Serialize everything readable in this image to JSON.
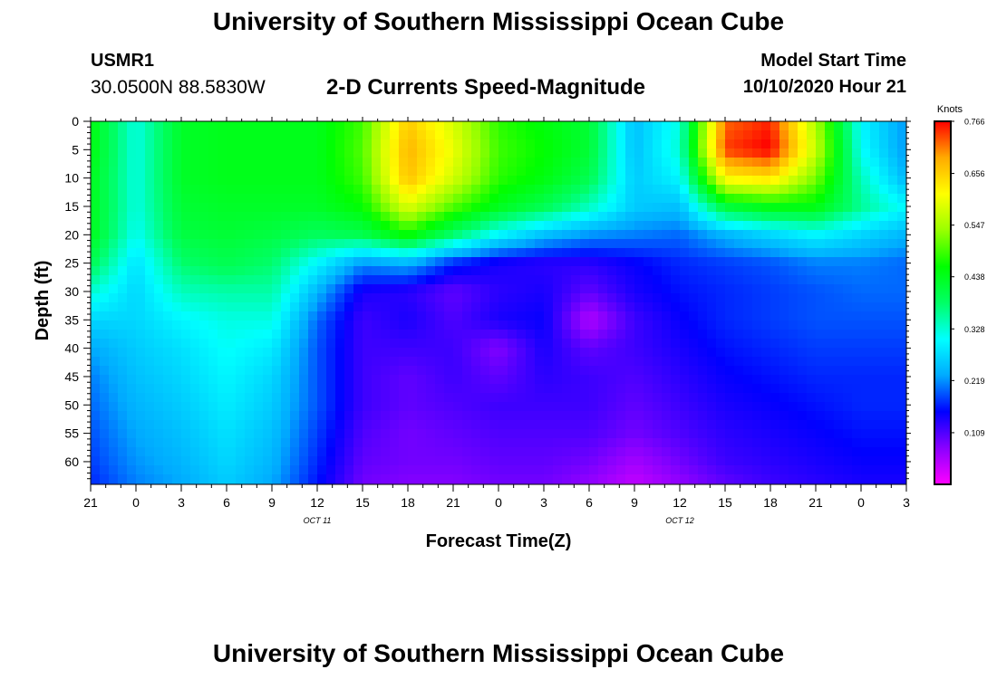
{
  "header": {
    "title": "University of Southern Mississippi Ocean Cube",
    "station_id": "USMR1",
    "station_location": "30.0500N 88.5830W",
    "subtitle": "2-D Currents Speed-Magnitude",
    "model_start_label": "Model Start Time",
    "model_start_value": "10/10/2020 Hour 21"
  },
  "footer": {
    "title": "University of Southern Mississippi Ocean Cube"
  },
  "chart_data": {
    "type": "heatmap",
    "xlabel": "Forecast Time(Z)",
    "ylabel": "Depth (ft)",
    "x_tick_labels": [
      "21",
      "0",
      "3",
      "6",
      "9",
      "12",
      "15",
      "18",
      "21",
      "0",
      "3",
      "6",
      "9",
      "12",
      "15",
      "18",
      "21",
      "0",
      "3"
    ],
    "date_labels": [
      {
        "label": "OCT 11",
        "at_tick": 5
      },
      {
        "label": "OCT 12",
        "at_tick": 13
      }
    ],
    "y_ticks": [
      0,
      5,
      10,
      15,
      20,
      25,
      30,
      35,
      40,
      45,
      50,
      55,
      60
    ],
    "ylim": [
      0,
      64
    ],
    "y_inverted": true,
    "x_hours_from_start": [
      0,
      3,
      6,
      9,
      12,
      15,
      18,
      21,
      24,
      27,
      30,
      33,
      36,
      39,
      42,
      45,
      48,
      51,
      54
    ],
    "colorbar": {
      "label": "Knots",
      "ticks": [
        0.766,
        0.656,
        0.547,
        0.438,
        0.328,
        0.219,
        0.109
      ],
      "range": [
        0,
        0.766
      ],
      "colors": [
        "#ff00ff",
        "#8a00ff",
        "#0000ff",
        "#00aaff",
        "#00ffff",
        "#00ff66",
        "#00ff00",
        "#99ff00",
        "#ffff00",
        "#ffaa00",
        "#ff0000"
      ]
    },
    "depth_rows_ft": [
      0,
      5,
      10,
      15,
      20,
      25,
      30,
      35,
      40,
      45,
      50,
      55,
      60,
      64
    ],
    "values": [
      [
        0.45,
        0.32,
        0.43,
        0.44,
        0.44,
        0.44,
        0.49,
        0.66,
        0.58,
        0.48,
        0.45,
        0.42,
        0.25,
        0.32,
        0.72,
        0.75,
        0.55,
        0.3,
        0.22
      ],
      [
        0.45,
        0.32,
        0.43,
        0.44,
        0.44,
        0.44,
        0.5,
        0.68,
        0.6,
        0.49,
        0.46,
        0.42,
        0.25,
        0.33,
        0.74,
        0.77,
        0.57,
        0.31,
        0.22
      ],
      [
        0.44,
        0.32,
        0.43,
        0.44,
        0.44,
        0.44,
        0.49,
        0.67,
        0.58,
        0.48,
        0.45,
        0.4,
        0.26,
        0.3,
        0.62,
        0.64,
        0.52,
        0.34,
        0.24
      ],
      [
        0.44,
        0.32,
        0.42,
        0.43,
        0.43,
        0.43,
        0.46,
        0.59,
        0.5,
        0.44,
        0.4,
        0.34,
        0.26,
        0.25,
        0.42,
        0.45,
        0.45,
        0.36,
        0.3
      ],
      [
        0.44,
        0.31,
        0.41,
        0.42,
        0.41,
        0.39,
        0.4,
        0.46,
        0.38,
        0.3,
        0.25,
        0.22,
        0.21,
        0.2,
        0.24,
        0.27,
        0.3,
        0.27,
        0.24
      ],
      [
        0.4,
        0.28,
        0.38,
        0.4,
        0.38,
        0.3,
        0.22,
        0.24,
        0.17,
        0.14,
        0.13,
        0.13,
        0.15,
        0.17,
        0.18,
        0.19,
        0.21,
        0.21,
        0.2
      ],
      [
        0.33,
        0.27,
        0.34,
        0.35,
        0.35,
        0.24,
        0.14,
        0.13,
        0.1,
        0.13,
        0.14,
        0.1,
        0.14,
        0.16,
        0.17,
        0.18,
        0.19,
        0.2,
        0.2
      ],
      [
        0.27,
        0.27,
        0.3,
        0.32,
        0.32,
        0.2,
        0.12,
        0.14,
        0.11,
        0.14,
        0.15,
        0.05,
        0.12,
        0.15,
        0.17,
        0.18,
        0.19,
        0.19,
        0.19
      ],
      [
        0.23,
        0.26,
        0.28,
        0.31,
        0.29,
        0.19,
        0.12,
        0.12,
        0.12,
        0.08,
        0.14,
        0.1,
        0.12,
        0.14,
        0.16,
        0.17,
        0.18,
        0.18,
        0.18
      ],
      [
        0.21,
        0.25,
        0.27,
        0.3,
        0.27,
        0.19,
        0.12,
        0.1,
        0.12,
        0.1,
        0.13,
        0.12,
        0.11,
        0.13,
        0.15,
        0.16,
        0.17,
        0.17,
        0.17
      ],
      [
        0.2,
        0.24,
        0.26,
        0.29,
        0.26,
        0.19,
        0.12,
        0.1,
        0.11,
        0.12,
        0.12,
        0.12,
        0.1,
        0.12,
        0.14,
        0.15,
        0.16,
        0.17,
        0.17
      ],
      [
        0.19,
        0.23,
        0.25,
        0.28,
        0.25,
        0.18,
        0.11,
        0.09,
        0.1,
        0.11,
        0.11,
        0.11,
        0.09,
        0.11,
        0.13,
        0.14,
        0.15,
        0.16,
        0.16
      ],
      [
        0.18,
        0.22,
        0.24,
        0.27,
        0.24,
        0.17,
        0.1,
        0.09,
        0.09,
        0.1,
        0.1,
        0.09,
        0.06,
        0.09,
        0.12,
        0.13,
        0.14,
        0.15,
        0.15
      ],
      [
        0.17,
        0.21,
        0.23,
        0.26,
        0.23,
        0.16,
        0.09,
        0.08,
        0.08,
        0.09,
        0.09,
        0.07,
        0.04,
        0.07,
        0.1,
        0.12,
        0.13,
        0.14,
        0.14
      ]
    ]
  }
}
